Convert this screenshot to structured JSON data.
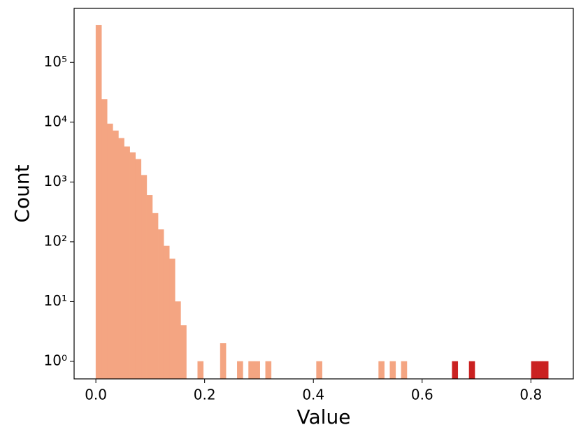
{
  "chart_data": {
    "type": "histogram",
    "x_label": "Value",
    "y_label": "Count",
    "log_y": true,
    "bins": [
      0,
      0.0104,
      0.0208,
      0.0312,
      0.0416,
      0.052,
      0.0624,
      0.0728,
      0.0832,
      0.0936,
      0.104,
      0.1144,
      0.1248,
      0.1352,
      0.1456,
      0.156,
      0.1664,
      0.1768,
      0.1872,
      0.1976,
      0.208,
      0.2184,
      0.2288,
      0.2392,
      0.2496,
      0.26,
      0.2704,
      0.2808,
      0.2912,
      0.3016,
      0.312,
      0.3224,
      0.3328,
      0.3432,
      0.3536,
      0.364,
      0.3744,
      0.3848,
      0.3952,
      0.4056,
      0.416,
      0.4264,
      0.4368,
      0.4472,
      0.4576,
      0.468,
      0.4784,
      0.4888,
      0.4992,
      0.5096,
      0.52,
      0.5304,
      0.5408,
      0.5512,
      0.5616,
      0.572,
      0.5824,
      0.5928,
      0.6032,
      0.6136,
      0.624,
      0.6344,
      0.6448,
      0.6552,
      0.6656,
      0.676,
      0.6864,
      0.6968,
      0.7072,
      0.7176,
      0.728,
      0.7384,
      0.7488,
      0.7592,
      0.7696,
      0.78,
      0.7904,
      0.8008,
      0.8112,
      0.8216,
      0.832
    ],
    "series": [
      {
        "color": "#f4a582",
        "values": [
          417000,
          24000,
          9400,
          7200,
          5400,
          3900,
          3100,
          2400,
          1300,
          600,
          300,
          160,
          85,
          52,
          10,
          4,
          0,
          0,
          1,
          0,
          0,
          0,
          2,
          0,
          0,
          1,
          0,
          1,
          1,
          0,
          1,
          0,
          0,
          0,
          0,
          0,
          0,
          0,
          0,
          1,
          0,
          0,
          0,
          0,
          0,
          0,
          0,
          0,
          0,
          0,
          1,
          0,
          1,
          0,
          1,
          0,
          0,
          0,
          0,
          0,
          0,
          0,
          0,
          0,
          0,
          0,
          0,
          0,
          0,
          0,
          0,
          0,
          0,
          0,
          0,
          0,
          0,
          0,
          0,
          0
        ]
      },
      {
        "color": "#ca2121",
        "values": [
          0,
          0,
          0,
          0,
          0,
          0,
          0,
          0,
          0,
          0,
          0,
          0,
          0,
          0,
          0,
          0,
          0,
          0,
          0,
          0,
          0,
          0,
          0,
          0,
          0,
          0,
          0,
          0,
          0,
          0,
          0,
          0,
          0,
          0,
          0,
          0,
          0,
          0,
          0,
          0,
          0,
          0,
          0,
          0,
          0,
          0,
          0,
          0,
          0,
          0,
          0,
          0,
          0,
          0,
          0,
          0,
          0,
          0,
          0,
          0,
          0,
          0,
          0,
          1,
          0,
          0,
          1,
          0,
          0,
          0,
          0,
          0,
          0,
          0,
          0,
          0,
          0,
          1,
          1,
          1
        ]
      }
    ],
    "xlim": [
      -0.04,
      0.878
    ],
    "xticks": [
      {
        "value": 0,
        "label": "0.0"
      },
      0.2,
      0.4,
      0.6,
      0.8
    ],
    "ylim": [
      0.51,
      800000
    ],
    "yticks": [
      {
        "value": 1,
        "label": "10⁰"
      },
      {
        "value": 10,
        "label": "10¹"
      },
      {
        "value": 100,
        "label": "10²"
      },
      {
        "value": 1000,
        "label": "10³"
      },
      {
        "value": 10000,
        "label": "10⁴"
      },
      {
        "value": 100000,
        "label": "10⁵"
      }
    ]
  }
}
